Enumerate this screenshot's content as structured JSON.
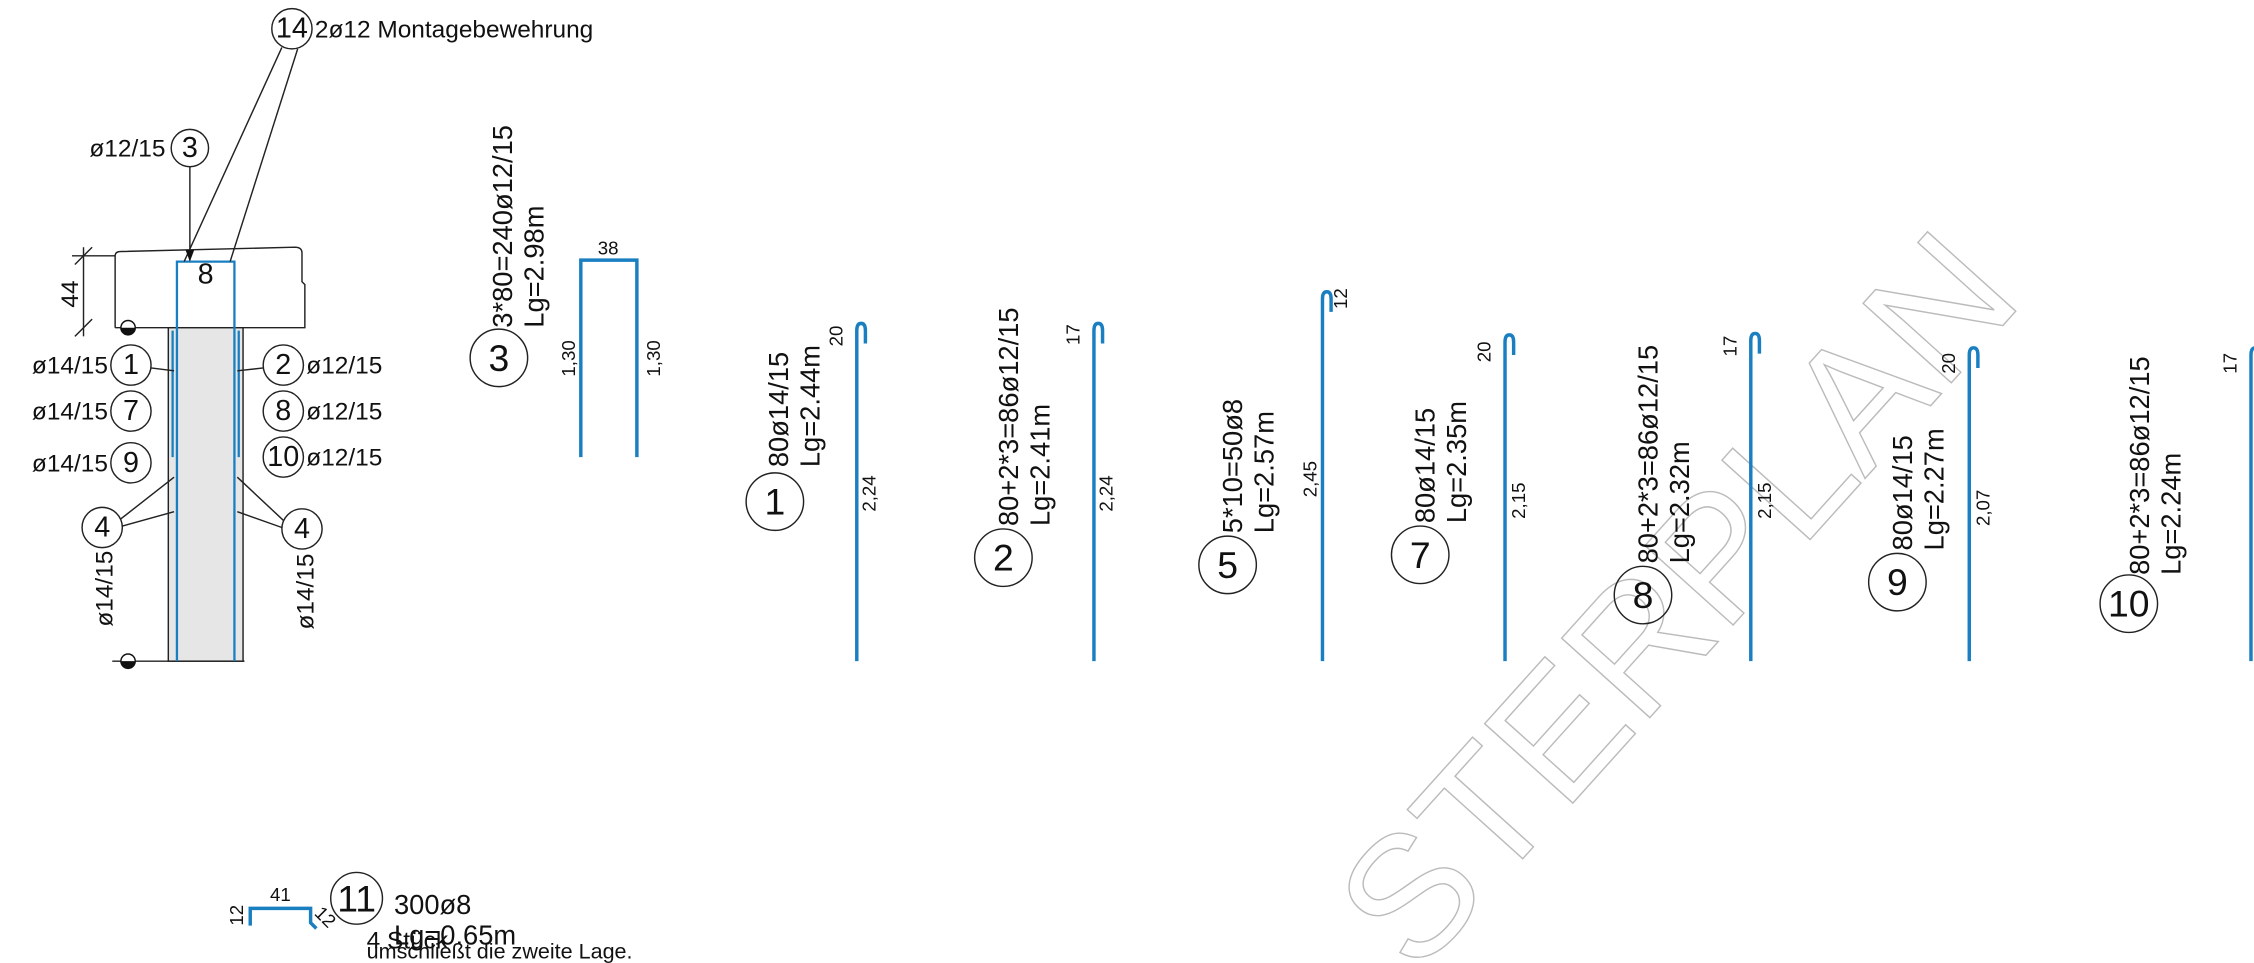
{
  "section": {
    "top_callout": {
      "mark": "14",
      "text": "2ø12 Montagebewehrung"
    },
    "stirrup_callout": {
      "mark": "3",
      "text": "ø12/15"
    },
    "height_dim": "44",
    "inner_mark": "8",
    "left": [
      {
        "mark": "1",
        "text": "ø14/15"
      },
      {
        "mark": "7",
        "text": "ø14/15"
      },
      {
        "mark": "9",
        "text": "ø14/15"
      }
    ],
    "right": [
      {
        "mark": "2",
        "text": "ø12/15"
      },
      {
        "mark": "8",
        "text": "ø12/15"
      },
      {
        "mark": "10",
        "text": "ø12/15"
      }
    ],
    "side_left": {
      "mark": "4",
      "text": "ø14/15"
    },
    "side_right": {
      "mark": "4",
      "text": "ø14/15"
    }
  },
  "stirrup": {
    "mark": "3",
    "desc": "3*80=240ø12/15",
    "lg": "Lg=2.98m",
    "width": "38",
    "leg_left": "1,30",
    "leg_right": "1,30"
  },
  "bars": [
    {
      "mark": "1",
      "desc": "80ø14/15",
      "lg": "Lg=2.44m",
      "hook": "20",
      "leg": "2,24"
    },
    {
      "mark": "2",
      "desc": "80+2*3=86ø12/15",
      "lg": "Lg=2.41m",
      "hook": "17",
      "leg": "2,24"
    },
    {
      "mark": "5",
      "desc": "5*10=50ø8",
      "lg": "Lg=2.57m",
      "hook": "12",
      "leg": "2,45"
    },
    {
      "mark": "7",
      "desc": "80ø14/15",
      "lg": "Lg=2.35m",
      "hook": "20",
      "leg": "2,15"
    },
    {
      "mark": "8",
      "desc": "80+2*3=86ø12/15",
      "lg": "Lg=2.32m",
      "hook": "17",
      "leg": "2,15"
    },
    {
      "mark": "9",
      "desc": "80ø14/15",
      "lg": "Lg=2.27m",
      "hook": "20",
      "leg": "2,07"
    },
    {
      "mark": "10",
      "desc": "80+2*3=86ø12/15",
      "lg": "Lg=2.24m",
      "hook": "17"
    }
  ],
  "link": {
    "mark": "11",
    "desc": "300ø8",
    "lg": "Lg=0.65m",
    "width": "41",
    "hook_left": "12",
    "hook_right": "12",
    "count": "4 Stück",
    "note": "umschließt die zweite Lage."
  },
  "watermark": "STERPLAN"
}
